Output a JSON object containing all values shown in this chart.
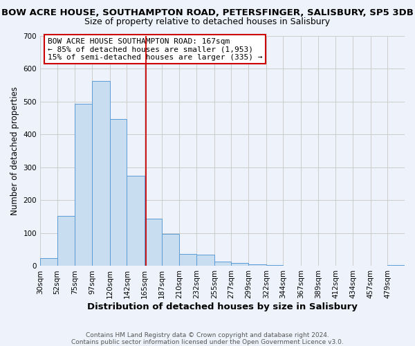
{
  "title": "BOW ACRE HOUSE, SOUTHAMPTON ROAD, PETERSFINGER, SALISBURY, SP5 3DB",
  "subtitle": "Size of property relative to detached houses in Salisbury",
  "xlabel": "Distribution of detached houses by size in Salisbury",
  "ylabel": "Number of detached properties",
  "bar_labels": [
    "30sqm",
    "52sqm",
    "75sqm",
    "97sqm",
    "120sqm",
    "142sqm",
    "165sqm",
    "187sqm",
    "210sqm",
    "232sqm",
    "255sqm",
    "277sqm",
    "299sqm",
    "322sqm",
    "344sqm",
    "367sqm",
    "389sqm",
    "412sqm",
    "434sqm",
    "457sqm",
    "479sqm"
  ],
  "bar_values": [
    25,
    153,
    493,
    563,
    447,
    274,
    144,
    98,
    36,
    35,
    14,
    10,
    5,
    4,
    2,
    1,
    0,
    0,
    0,
    0,
    3
  ],
  "bar_color": "#c9ddf0",
  "bar_edge_color": "#5b9bd5",
  "grid_color": "#cccccc",
  "bg_color": "#eef2fa",
  "vline_x": 167,
  "vline_color": "#cc0000",
  "bin_edges": [
    30,
    52,
    75,
    97,
    120,
    142,
    165,
    187,
    210,
    232,
    255,
    277,
    299,
    322,
    344,
    367,
    389,
    412,
    434,
    457,
    479,
    501
  ],
  "annotation_title": "BOW ACRE HOUSE SOUTHAMPTON ROAD: 167sqm",
  "annotation_line1": "← 85% of detached houses are smaller (1,953)",
  "annotation_line2": "15% of semi-detached houses are larger (335) →",
  "footnote1": "Contains HM Land Registry data © Crown copyright and database right 2024.",
  "footnote2": "Contains public sector information licensed under the Open Government Licence v3.0.",
  "ylim": [
    0,
    700
  ],
  "yticks": [
    0,
    100,
    200,
    300,
    400,
    500,
    600,
    700
  ],
  "title_fontsize": 9.5,
  "subtitle_fontsize": 9,
  "xlabel_fontsize": 9.5,
  "ylabel_fontsize": 8.5,
  "tick_fontsize": 7.5,
  "annotation_fontsize": 8,
  "footnote_fontsize": 6.5
}
